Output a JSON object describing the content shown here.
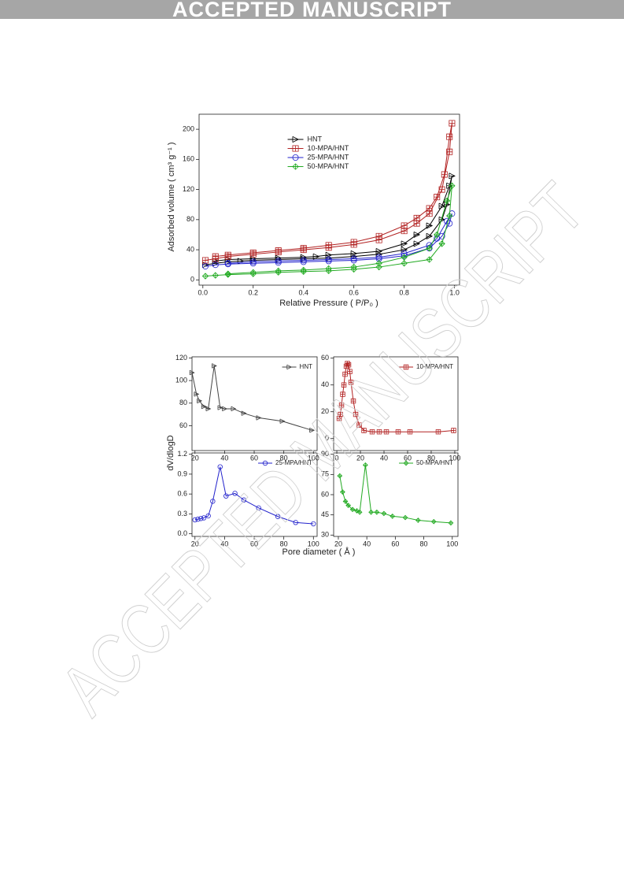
{
  "header": {
    "banner": "ACCEPTED MANUSCRIPT"
  },
  "watermark": "ACCEPTED MANUSCRIPT",
  "pore_figure": {
    "y_label": "dV/dlogD",
    "x_label": "Pore diameter ( Å )"
  },
  "chart_data": [
    {
      "type": "line",
      "x_label": "Relative Pressure ( P/P₀ )",
      "y_label": "Adsorbed volume ( cm³ g⁻¹ )",
      "xlim": [
        -0.015,
        1.02
      ],
      "ylim": [
        -7,
        220
      ],
      "xticks": [
        {
          "value": 0,
          "label": "0.0"
        },
        0.2,
        0.4,
        0.6,
        0.8,
        {
          "value": 1,
          "label": "1.0"
        }
      ],
      "yticks": [
        0,
        40,
        80,
        120,
        160,
        200
      ],
      "legend": "upper center",
      "series": [
        {
          "name": "HNT",
          "color": "#000000",
          "marker": "tri",
          "x": [
            0.01,
            0.05,
            0.1,
            0.15,
            0.2,
            0.3,
            0.4,
            0.5,
            0.6,
            0.7,
            0.8,
            0.85,
            0.9,
            0.95,
            0.97,
            0.99,
            0.98,
            0.95,
            0.9,
            0.85,
            0.8,
            0.7,
            0.6,
            0.5,
            0.45,
            0.4,
            0.3,
            0.2,
            0.1,
            0.05
          ],
          "values": [
            20,
            22,
            24,
            25,
            26,
            27,
            28,
            29,
            31,
            34,
            40,
            48,
            58,
            80,
            100,
            138,
            125,
            98,
            72,
            60,
            48,
            38,
            35,
            33,
            31,
            30,
            29,
            28,
            27,
            25
          ]
        },
        {
          "name": "10-MPA/HNT",
          "color": "#b22222",
          "marker": "square",
          "x": [
            0.01,
            0.05,
            0.1,
            0.2,
            0.3,
            0.4,
            0.5,
            0.6,
            0.7,
            0.8,
            0.85,
            0.9,
            0.95,
            0.98,
            0.99,
            0.98,
            0.96,
            0.93,
            0.9,
            0.85,
            0.8,
            0.7,
            0.6,
            0.5,
            0.4,
            0.3,
            0.2,
            0.1,
            0.05
          ],
          "values": [
            26,
            28,
            31,
            34,
            37,
            40,
            43,
            47,
            53,
            65,
            75,
            88,
            120,
            170,
            208,
            190,
            140,
            110,
            95,
            82,
            72,
            58,
            50,
            46,
            42,
            39,
            36,
            33,
            31
          ]
        },
        {
          "name": "25-MPA/HNT",
          "color": "#2222cc",
          "marker": "circle",
          "x": [
            0.01,
            0.05,
            0.1,
            0.2,
            0.3,
            0.4,
            0.5,
            0.6,
            0.7,
            0.8,
            0.9,
            0.95,
            0.98,
            0.99,
            0.97,
            0.93,
            0.9,
            0.8,
            0.7,
            0.6,
            0.5,
            0.4,
            0.3,
            0.2,
            0.1
          ],
          "values": [
            18,
            20,
            21,
            22,
            23,
            24,
            25,
            26,
            28,
            32,
            42,
            58,
            75,
            88,
            78,
            55,
            46,
            35,
            30,
            28,
            27,
            26,
            25,
            24,
            22
          ]
        },
        {
          "name": "50-MPA/HNT",
          "color": "#22aa22",
          "marker": "diamond",
          "x": [
            0.01,
            0.05,
            0.1,
            0.2,
            0.3,
            0.4,
            0.5,
            0.6,
            0.7,
            0.8,
            0.9,
            0.95,
            0.98,
            0.99,
            0.97,
            0.93,
            0.9,
            0.8,
            0.7,
            0.6,
            0.5,
            0.4,
            0.3,
            0.2,
            0.1
          ],
          "values": [
            5,
            6,
            7,
            8,
            10,
            11,
            12,
            14,
            17,
            22,
            27,
            48,
            85,
            125,
            105,
            60,
            42,
            30,
            22,
            17,
            15,
            13,
            12,
            10,
            8
          ]
        }
      ]
    },
    {
      "type": "line",
      "xlim": [
        18,
        102.5
      ],
      "ylim": [
        38,
        121
      ],
      "xticks": [
        20,
        40,
        60,
        80,
        100
      ],
      "yticks": [
        60,
        80,
        100,
        120
      ],
      "legend": "upper right",
      "series": [
        {
          "name": "HNT",
          "color": "#444444",
          "marker": "tri",
          "x": [
            18,
            21,
            23,
            26,
            29,
            33,
            37,
            40,
            46,
            53,
            63,
            79,
            99
          ],
          "values": [
            107,
            88,
            82,
            77,
            75,
            113,
            76,
            75,
            75,
            71,
            67,
            64,
            56
          ]
        }
      ]
    },
    {
      "type": "line",
      "xlim": [
        -2.7,
        102.7
      ],
      "ylim": [
        -9,
        61
      ],
      "xticks": [
        0,
        20,
        40,
        60,
        80,
        100
      ],
      "yticks": [
        0,
        20,
        40,
        60
      ],
      "legend": "upper right",
      "series": [
        {
          "name": "10-MPA/HNT",
          "color": "#b22222",
          "marker": "square",
          "x": [
            2,
            3,
            4,
            5,
            6,
            7,
            8,
            9,
            10,
            11,
            12,
            14,
            16,
            19,
            23,
            30,
            36,
            42,
            52,
            62,
            86,
            99
          ],
          "values": [
            15,
            18,
            25,
            33,
            40,
            48,
            54,
            56,
            55,
            50,
            42,
            28,
            18,
            10,
            6,
            5,
            5,
            5,
            5,
            5,
            5,
            6
          ]
        }
      ]
    },
    {
      "type": "line",
      "xlim": [
        18,
        102.5
      ],
      "ylim": [
        -0.04,
        1.22
      ],
      "xticks": [
        20,
        40,
        60,
        80,
        100
      ],
      "yticks": [
        {
          "value": 0,
          "label": "0.0"
        },
        0.3,
        0.6,
        0.9,
        1.2
      ],
      "legend": "upper right",
      "series": [
        {
          "name": "25-MPA/HNT",
          "color": "#2222cc",
          "marker": "circle",
          "x": [
            20,
            22,
            24,
            26,
            29,
            32,
            37,
            41,
            47,
            53,
            63,
            76,
            88,
            100
          ],
          "values": [
            0.21,
            0.22,
            0.23,
            0.24,
            0.27,
            0.49,
            1.01,
            0.57,
            0.61,
            0.51,
            0.39,
            0.26,
            0.17,
            0.15
          ]
        }
      ]
    },
    {
      "type": "line",
      "xlim": [
        16.7,
        104
      ],
      "ylim": [
        29,
        91
      ],
      "xticks": [
        20,
        40,
        60,
        80,
        100
      ],
      "yticks": [
        30,
        45,
        60,
        75,
        90
      ],
      "legend": "upper right",
      "series": [
        {
          "name": "50-MPA/HNT",
          "color": "#22aa22",
          "marker": "diamond",
          "x": [
            21,
            23,
            25,
            27,
            30,
            33,
            35,
            39,
            43,
            47,
            52,
            58,
            67,
            76,
            87,
            99
          ],
          "values": [
            74,
            62,
            55,
            52,
            49,
            48,
            47,
            82,
            47,
            47,
            46,
            44,
            43,
            41,
            40,
            39
          ]
        }
      ]
    }
  ]
}
